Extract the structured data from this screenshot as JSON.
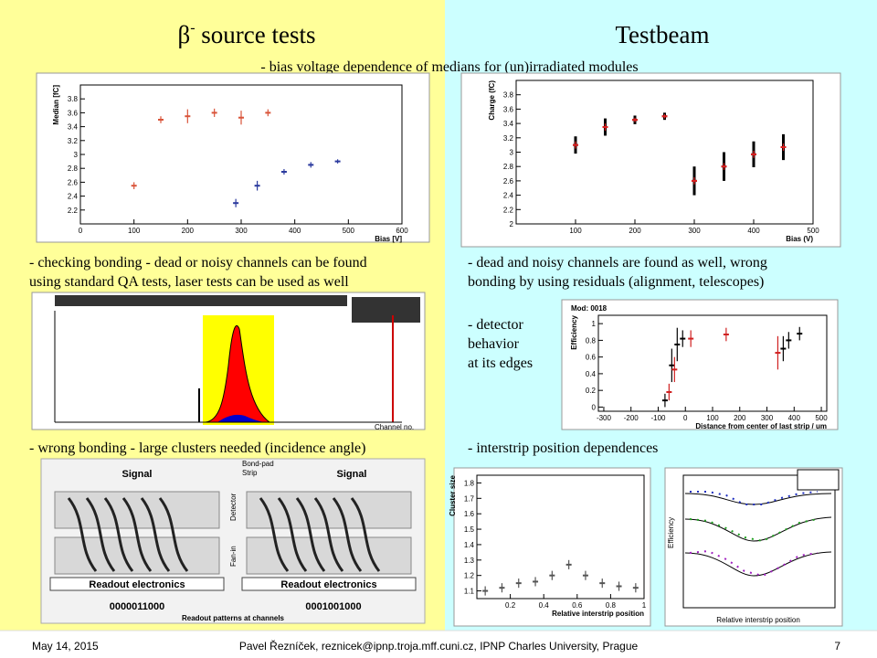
{
  "slide": {
    "title_left": {
      "symbol": "β",
      "sup": "-",
      "text": " source tests"
    },
    "title_right": "Testbeam",
    "subtitle": "- bias voltage dependence of medians for (un)irradiated modules",
    "left_text_1": [
      "- checking bonding - dead or noisy channels can be found",
      "using standard QA tests, laser tests can be used as well"
    ],
    "right_text_1": [
      "- dead and noisy channels are found as well, wrong",
      "bonding by using residuals (alignment, telescopes)"
    ],
    "right_text_2": [
      "- detector",
      "behavior",
      "at its edges"
    ],
    "left_text_2": "- wrong bonding - large clusters needed (incidence angle)",
    "right_text_3": "- interstrip position dependences",
    "bonding": {
      "signal": "Signal",
      "bond_pad": [
        "Bond-pad",
        "Strip"
      ],
      "detector": "Detector",
      "fan_in": "Fan-in",
      "readout": "Readout electronics",
      "pattern_1": "0000011000",
      "pattern_2": "0001001000",
      "caption": "Readout patterns at channels"
    },
    "histogram": {
      "x_label": "Channel no."
    },
    "eff_lines": {
      "x_label": "Relative interstrip position",
      "y_label": "Efficiency"
    },
    "footer": {
      "date": "May 14, 2015",
      "author": "Pavel Řezníček, reznicek@ipnp.troja.mff.cuni.cz, IPNP Charles University, Prague",
      "page": "7"
    }
  },
  "chart_data": [
    {
      "type": "scatter",
      "x_label": "Bias [V]",
      "y_label": "Median [fC]",
      "xlim": [
        0,
        600
      ],
      "xticks": [
        0,
        100,
        200,
        300,
        400,
        500,
        600
      ],
      "ylim": [
        2,
        4
      ],
      "yticks": [
        2.2,
        2.4,
        2.6,
        2.8,
        3,
        3.2,
        3.4,
        3.6,
        3.8
      ],
      "series": [
        {
          "color": "#d9543a",
          "x": [
            100,
            150,
            200,
            250,
            300,
            350
          ],
          "values": [
            2.55,
            3.5,
            3.55,
            3.6,
            3.53,
            3.6
          ],
          "errors": [
            0.05,
            0.05,
            0.1,
            0.06,
            0.1,
            0.05
          ]
        },
        {
          "color": "#2b3a9e",
          "x": [
            290,
            330,
            380,
            430,
            480
          ],
          "values": [
            2.3,
            2.55,
            2.75,
            2.85,
            2.9
          ],
          "errors": [
            0.06,
            0.07,
            0.04,
            0.04,
            0.03
          ]
        }
      ]
    },
    {
      "type": "scatter",
      "x_label": "Bias (V)",
      "y_label": "Charge (fC)",
      "xlim": [
        0,
        500
      ],
      "xticks": [
        100,
        200,
        300,
        400,
        500
      ],
      "ylim": [
        2,
        4
      ],
      "yticks": [
        2,
        2.2,
        2.4,
        2.6,
        2.8,
        3,
        3.2,
        3.4,
        3.6,
        3.8
      ],
      "series": [
        {
          "color": "#000000",
          "x": [
            100,
            150,
            200,
            250,
            300,
            350,
            400,
            450
          ],
          "values": [
            3.1,
            3.35,
            3.45,
            3.5,
            2.6,
            2.8,
            2.97,
            3.07
          ],
          "errors": [
            0.12,
            0.12,
            0.06,
            0.05,
            0.2,
            0.2,
            0.18,
            0.18
          ]
        },
        {
          "color": "#e02020",
          "x": [
            100,
            150,
            200,
            250,
            300,
            350,
            400,
            450
          ],
          "values": [
            3.1,
            3.35,
            3.45,
            3.5,
            2.6,
            2.8,
            2.97,
            3.07
          ],
          "errors": [
            0.05,
            0.05,
            0.03,
            0.03,
            0.05,
            0.05,
            0.05,
            0.05
          ]
        }
      ]
    },
    {
      "type": "scatter",
      "title": "Mod: 0018",
      "x_label": "Distance from center of last strip / um",
      "y_label": "Efficiency",
      "xlim": [
        -320,
        520
      ],
      "xticks": [
        -300,
        -200,
        -100,
        0,
        100,
        200,
        300,
        400,
        500
      ],
      "ylim": [
        -0.05,
        1.1
      ],
      "yticks": [
        0,
        0.2,
        0.4,
        0.6,
        0.8,
        1
      ],
      "series": [
        {
          "color": "#000000",
          "x": [
            -75,
            -50,
            -30,
            -10,
            360,
            380,
            420
          ],
          "values": [
            0.08,
            0.5,
            0.75,
            0.82,
            0.7,
            0.8,
            0.88
          ],
          "errors": [
            0.08,
            0.2,
            0.2,
            0.1,
            0.15,
            0.1,
            0.08
          ]
        },
        {
          "color": "#d02020",
          "x": [
            -60,
            -40,
            20,
            150,
            340
          ],
          "values": [
            0.18,
            0.45,
            0.82,
            0.87,
            0.65
          ],
          "errors": [
            0.1,
            0.15,
            0.1,
            0.08,
            0.2
          ]
        }
      ]
    },
    {
      "type": "scatter",
      "y_label": "Cluster size",
      "x_label": "Relative interstrip position",
      "xlim": [
        0,
        1
      ],
      "xticks": [
        0.2,
        0.4,
        0.6,
        0.8,
        1
      ],
      "ylim": [
        1.05,
        1.85
      ],
      "yticks": [
        1.1,
        1.2,
        1.3,
        1.4,
        1.5,
        1.6,
        1.7,
        1.8
      ],
      "series": [
        {
          "color": "#555555",
          "x": [
            0.05,
            0.15,
            0.25,
            0.35,
            0.45,
            0.55,
            0.65,
            0.75,
            0.85,
            0.95
          ],
          "values": [
            1.1,
            1.12,
            1.15,
            1.16,
            1.2,
            1.27,
            1.2,
            1.15,
            1.13,
            1.12
          ],
          "errors": [
            0.03,
            0.03,
            0.03,
            0.03,
            0.03,
            0.03,
            0.03,
            0.03,
            0.03,
            0.03
          ]
        }
      ]
    }
  ]
}
